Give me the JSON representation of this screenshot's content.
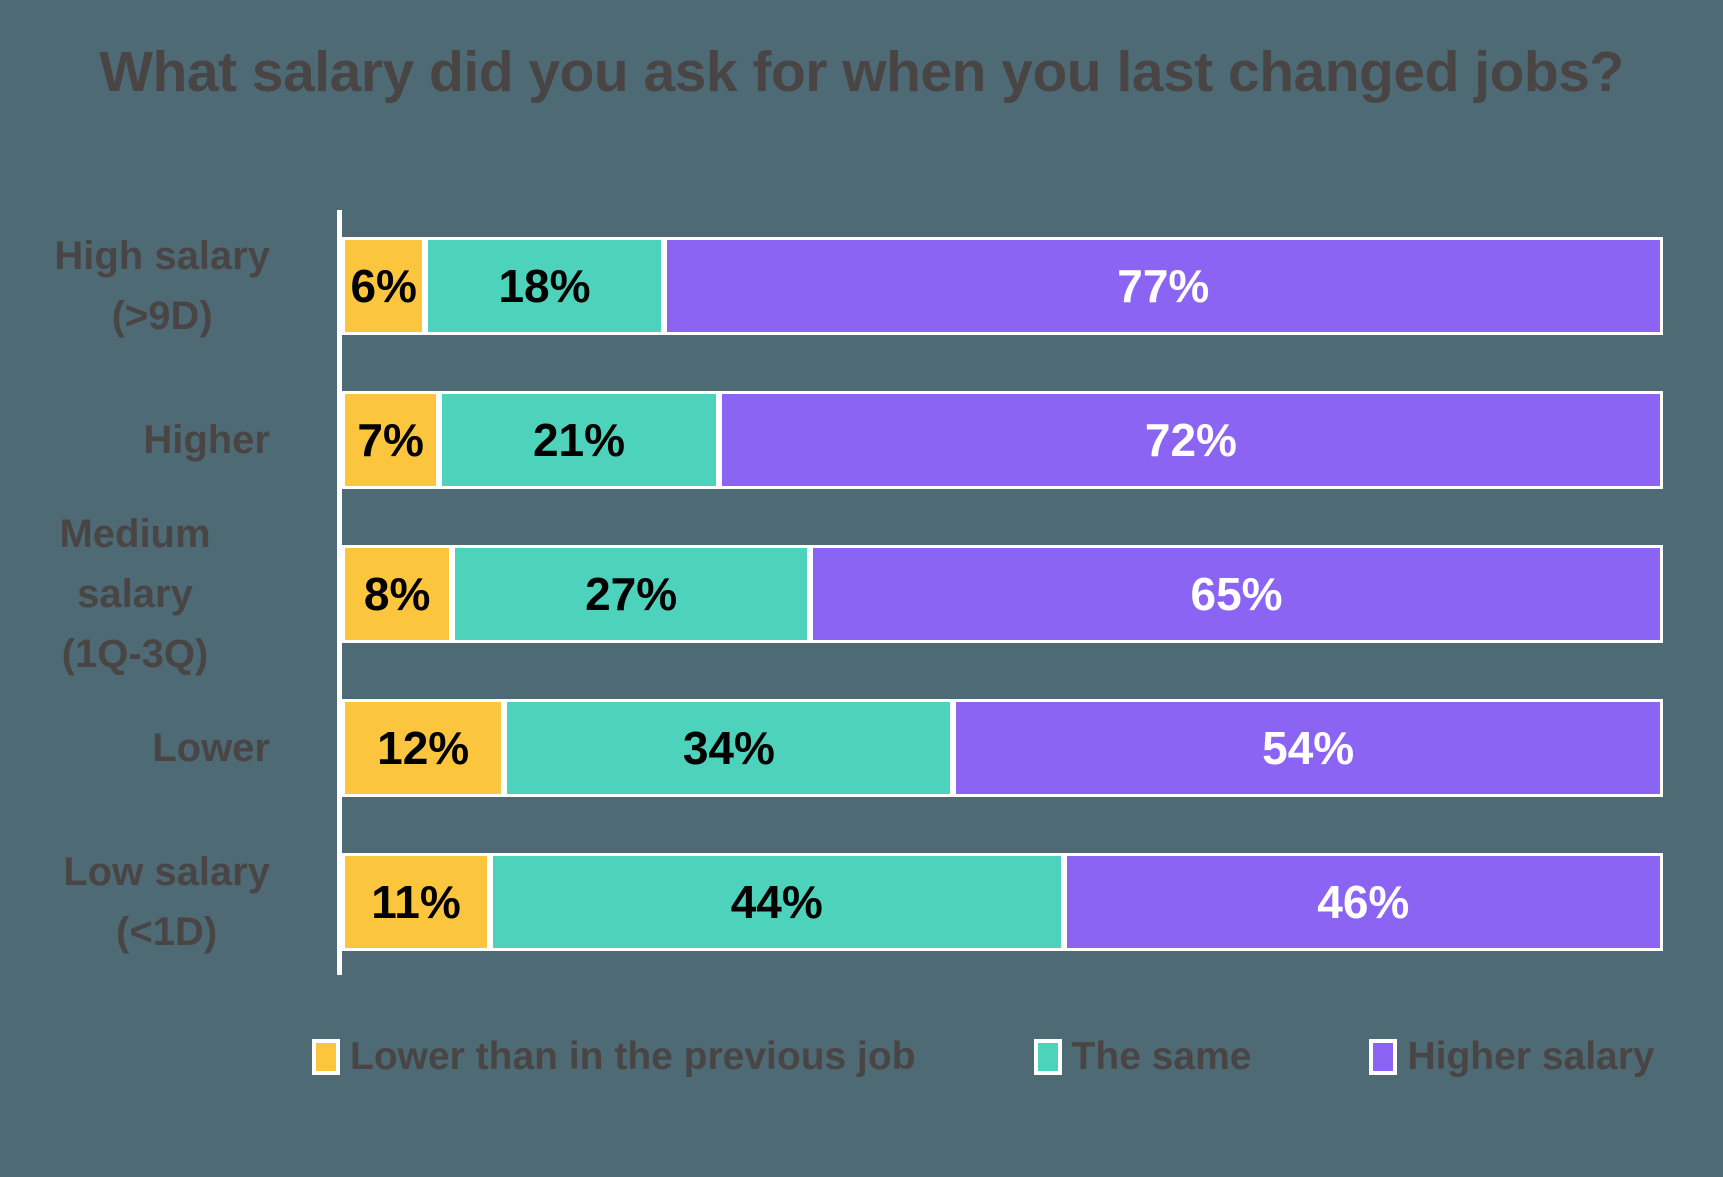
{
  "title": "What salary did you ask for when you last changed jobs?",
  "colors": {
    "background": "#4E6A74",
    "text": "#4A4545",
    "axis_line": "#FFFFFF",
    "segment_border": "#FFFFFF"
  },
  "chart_data": {
    "type": "bar",
    "orientation": "horizontal",
    "stacked": true,
    "percent_stacked": true,
    "title": "What salary did you ask for when you last changed jobs?",
    "categories": [
      "High salary (>9D)",
      "Higher",
      "Medium salary (1Q-3Q)",
      "Lower",
      "Low salary (<1D)"
    ],
    "category_label_lines": [
      [
        "High salary",
        "(>9D)"
      ],
      [
        "Higher"
      ],
      [
        "Medium salary",
        "(1Q-3Q)"
      ],
      [
        "Lower"
      ],
      [
        "Low salary",
        "(<1D)"
      ]
    ],
    "series": [
      {
        "name": "Lower than in the previous job",
        "color": "#FBC53E",
        "label_color": "#000000",
        "values": [
          6,
          7,
          8,
          12,
          11
        ]
      },
      {
        "name": "The same",
        "color": "#4DD2BB",
        "label_color": "#000000",
        "values": [
          18,
          21,
          27,
          34,
          44
        ]
      },
      {
        "name": "Higher salary",
        "color": "#8B64F4",
        "label_color": "#FFFFFF",
        "values": [
          77,
          72,
          65,
          54,
          46
        ]
      }
    ],
    "value_suffix": "%",
    "xlabel": "",
    "ylabel": "",
    "xlim": [
      0,
      100
    ],
    "gridlines": false,
    "legend_position": "bottom",
    "data_labels": "inside-center"
  },
  "legend": {
    "items": [
      "Lower than in the previous job",
      "The same",
      "Higher salary"
    ]
  }
}
